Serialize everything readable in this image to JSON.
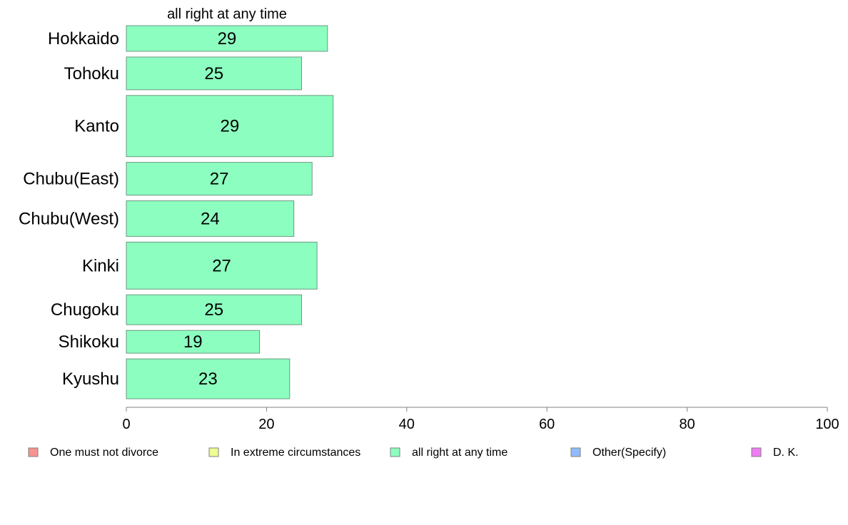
{
  "chart_data": {
    "type": "bar",
    "orientation": "horizontal",
    "title": "all right at any time",
    "categories": [
      "Hokkaido",
      "Tohoku",
      "Kanto",
      "Chubu(East)",
      "Chubu(West)",
      "Kinki",
      "Chugoku",
      "Shikoku",
      "Kyushu"
    ],
    "values": [
      29,
      25,
      29,
      27,
      24,
      27,
      25,
      19,
      23
    ],
    "bar_values": [
      28.7,
      25.0,
      29.5,
      26.5,
      23.9,
      27.2,
      25.0,
      19.0,
      23.3
    ],
    "relative_bar_thickness": [
      36,
      46,
      86,
      46,
      50,
      66,
      42,
      32,
      56
    ],
    "xlim": [
      0,
      100
    ],
    "xticks": [
      0,
      20,
      40,
      60,
      80,
      100
    ],
    "bar_color": "#8cffc0",
    "bar_stroke": "#6a9a80",
    "legend": {
      "placement": "bottom",
      "entries": [
        {
          "label": "One must not divorce",
          "color": "#f79390"
        },
        {
          "label": "In extreme circumstances",
          "color": "#eeff90"
        },
        {
          "label": "all right at any time",
          "color": "#8cffc0"
        },
        {
          "label": "Other(Specify)",
          "color": "#90bcff"
        },
        {
          "label": "D. K.",
          "color": "#f07cf4"
        }
      ]
    }
  }
}
